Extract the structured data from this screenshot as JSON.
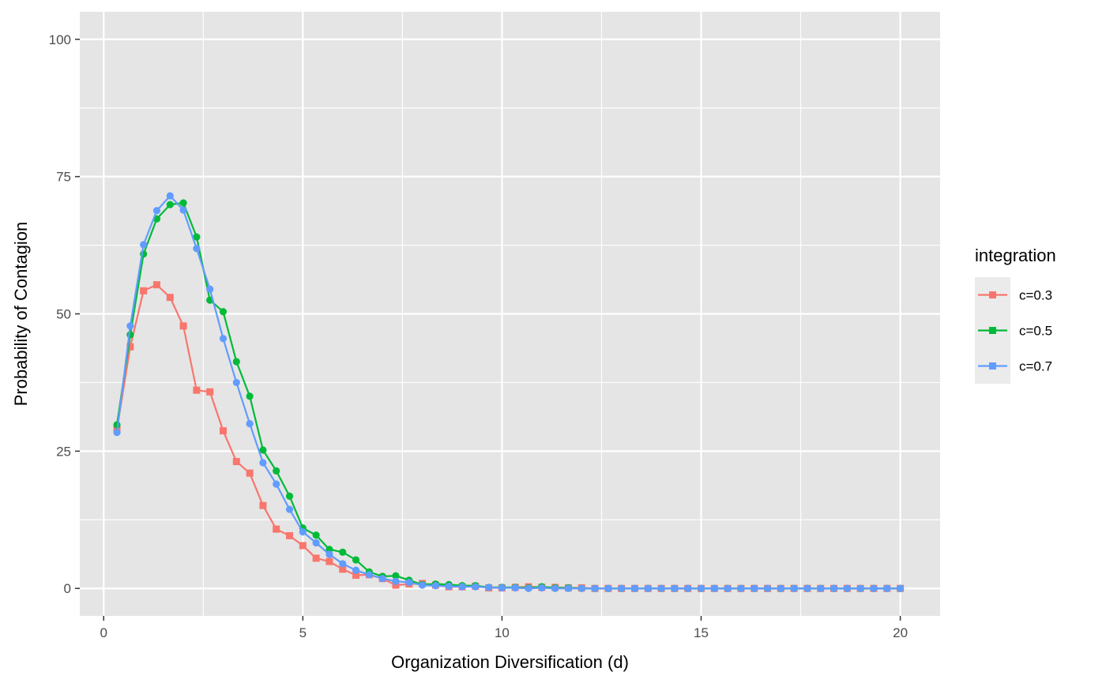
{
  "chart_data": {
    "type": "line",
    "xlabel": "Organization Diversification (d)",
    "ylabel": "Probability of Contagion",
    "xlim": [
      -0.6,
      21.0
    ],
    "ylim": [
      -5,
      105
    ],
    "xticks": [
      0,
      5,
      10,
      15,
      20
    ],
    "xtick_labels": [
      "0",
      "5",
      "10",
      "15",
      "20"
    ],
    "yticks": [
      0,
      25,
      50,
      75,
      100
    ],
    "ytick_labels": [
      "0",
      "25",
      "50",
      "75",
      "100"
    ],
    "grid": true,
    "legend": {
      "title": "integration",
      "position": "right"
    },
    "x": [
      0.333,
      0.667,
      1.0,
      1.333,
      1.667,
      2.0,
      2.333,
      2.667,
      3.0,
      3.333,
      3.667,
      4.0,
      4.333,
      4.667,
      5.0,
      5.333,
      5.667,
      6.0,
      6.333,
      6.667,
      7.0,
      7.333,
      7.667,
      8.0,
      8.333,
      8.667,
      9.0,
      9.333,
      9.667,
      10.0,
      10.333,
      10.667,
      11.0,
      11.333,
      11.667,
      12.0,
      12.333,
      12.667,
      13.0,
      13.333,
      13.667,
      14.0,
      14.333,
      14.667,
      15.0,
      15.333,
      15.667,
      16.0,
      16.333,
      16.667,
      17.0,
      17.333,
      17.667,
      18.0,
      18.333,
      18.667,
      19.0,
      19.333,
      19.667,
      20.0
    ],
    "series": [
      {
        "name": "c=0.3",
        "color": "#F8766D",
        "values": [
          29.0,
          44.0,
          54.2,
          55.3,
          53.0,
          47.8,
          36.1,
          35.8,
          28.7,
          23.1,
          21.0,
          15.1,
          10.8,
          9.6,
          7.8,
          5.5,
          4.9,
          3.5,
          2.4,
          2.5,
          1.8,
          0.6,
          0.8,
          0.9,
          0.6,
          0.3,
          0.3,
          0.4,
          0.1,
          0.1,
          0.2,
          0.3,
          0.2,
          0.2,
          0.1,
          0.1,
          0.0,
          0.0,
          0.0,
          0.0,
          0.0,
          0.0,
          0.0,
          0.0,
          0.0,
          0.0,
          0.0,
          0.0,
          0.0,
          0.0,
          0.0,
          0.0,
          0.0,
          0.0,
          0.0,
          0.0,
          0.0,
          0.0,
          0.0,
          0.0
        ]
      },
      {
        "name": "c=0.5",
        "color": "#00BA38",
        "values": [
          29.8,
          46.2,
          60.9,
          67.3,
          69.9,
          70.2,
          64.0,
          52.5,
          50.4,
          41.3,
          35.0,
          25.2,
          21.4,
          16.8,
          11.0,
          9.7,
          7.1,
          6.6,
          5.2,
          3.0,
          2.2,
          2.3,
          1.5,
          0.7,
          0.8,
          0.7,
          0.5,
          0.5,
          0.2,
          0.2,
          0.2,
          0.1,
          0.3,
          0.1,
          0.1,
          0.0,
          0.0,
          0.0,
          0.0,
          0.0,
          0.0,
          0.0,
          0.0,
          0.0,
          0.0,
          0.0,
          0.0,
          0.0,
          0.0,
          0.0,
          0.0,
          0.0,
          0.0,
          0.0,
          0.0,
          0.0,
          0.0,
          0.0,
          0.0,
          0.0
        ]
      },
      {
        "name": "c=0.7",
        "color": "#619CFF",
        "values": [
          28.4,
          47.8,
          62.6,
          68.8,
          71.5,
          68.9,
          61.9,
          54.5,
          45.5,
          37.5,
          30.0,
          22.9,
          19.0,
          14.4,
          10.3,
          8.3,
          6.2,
          4.5,
          3.3,
          2.5,
          1.8,
          1.3,
          1.1,
          0.6,
          0.5,
          0.4,
          0.3,
          0.3,
          0.2,
          0.1,
          0.1,
          0.0,
          0.1,
          0.0,
          0.0,
          0.0,
          0.0,
          0.0,
          0.0,
          0.0,
          0.0,
          0.0,
          0.0,
          0.0,
          0.0,
          0.0,
          0.0,
          0.0,
          0.0,
          0.0,
          0.0,
          0.0,
          0.0,
          0.0,
          0.0,
          0.0,
          0.0,
          0.0,
          0.0,
          0.0
        ]
      }
    ]
  },
  "colors": {
    "panel_background": "#E5E5E5",
    "grid": "#FFFFFF",
    "legend_key_background": "#EBEBEB"
  }
}
